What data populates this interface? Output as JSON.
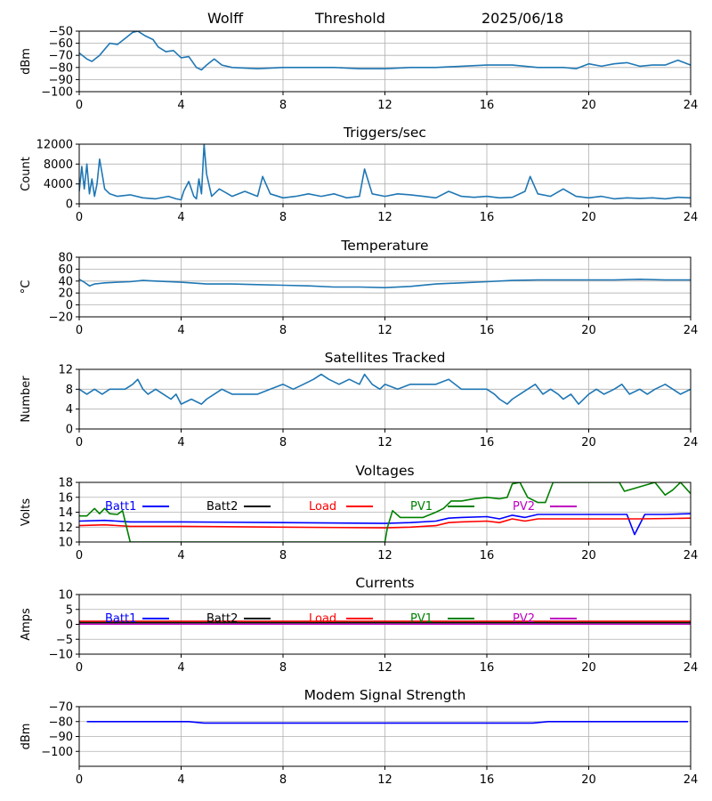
{
  "header": {
    "site": "Wolff",
    "mode": "Threshold",
    "date": "2025/06/18"
  },
  "colors": {
    "series": "#1f77b4",
    "grid": "#b0b0b0",
    "batt1": "#0000ff",
    "batt2": "#000000",
    "load": "#ff0000",
    "pv1": "#008000",
    "pv2": "#bf00bf",
    "modem": "#0000ff"
  },
  "chart_data": [
    {
      "type": "line",
      "title": "",
      "ylabel": "dBm",
      "xlim": [
        0,
        24
      ],
      "ylim": [
        -100,
        -50
      ],
      "xticks": [
        0,
        4,
        8,
        12,
        16,
        20,
        24
      ],
      "yticks": [
        -100,
        -90,
        -80,
        -70,
        -60,
        -50
      ],
      "grid": true,
      "series": [
        {
          "color": "#1f77b4",
          "x": [
            0,
            0.3,
            0.5,
            0.8,
            1.2,
            1.5,
            1.8,
            2.1,
            2.3,
            2.6,
            2.9,
            3.1,
            3.4,
            3.7,
            4,
            4.3,
            4.6,
            4.8,
            5,
            5.3,
            5.6,
            6,
            7,
            8,
            9,
            10,
            11,
            12,
            13,
            14,
            15,
            16,
            17,
            18,
            19,
            19.5,
            20,
            20.5,
            21,
            21.5,
            22,
            22.5,
            23,
            23.5,
            24
          ],
          "y": [
            -68,
            -73,
            -75,
            -70,
            -60,
            -61,
            -56,
            -51,
            -50,
            -54,
            -57,
            -63,
            -67,
            -66,
            -72,
            -71,
            -80,
            -82,
            -78,
            -73,
            -78,
            -80,
            -81,
            -80,
            -80,
            -80,
            -81,
            -81,
            -80,
            -80,
            -79,
            -78,
            -78,
            -80,
            -80,
            -81,
            -77,
            -79,
            -77,
            -76,
            -79,
            -78,
            -78,
            -74,
            -78
          ]
        }
      ]
    },
    {
      "type": "line",
      "title": "Triggers/sec",
      "ylabel": "Count",
      "xlim": [
        0,
        24
      ],
      "ylim": [
        0,
        12000
      ],
      "xticks": [
        0,
        4,
        8,
        12,
        16,
        20,
        24
      ],
      "yticks": [
        0,
        4000,
        8000,
        12000
      ],
      "grid": true,
      "series": [
        {
          "color": "#1f77b4",
          "x": [
            0,
            0.1,
            0.2,
            0.3,
            0.4,
            0.5,
            0.6,
            0.7,
            0.8,
            0.9,
            1,
            1.2,
            1.5,
            2,
            2.5,
            3,
            3.5,
            3.8,
            4,
            4.1,
            4.3,
            4.5,
            4.6,
            4.7,
            4.8,
            4.9,
            5,
            5.2,
            5.5,
            6,
            6.5,
            7,
            7.2,
            7.5,
            8,
            8.5,
            9,
            9.5,
            10,
            10.5,
            11,
            11.2,
            11.5,
            12,
            12.5,
            13,
            13.5,
            14,
            14.5,
            15,
            15.5,
            16,
            16.5,
            17,
            17.5,
            17.7,
            18,
            18.5,
            19,
            19.5,
            20,
            20.5,
            21,
            21.5,
            22,
            22.5,
            23,
            23.5,
            24
          ],
          "y": [
            2500,
            7500,
            3000,
            8000,
            2000,
            5000,
            1500,
            4000,
            9000,
            6000,
            3000,
            2000,
            1500,
            1800,
            1200,
            1000,
            1500,
            1000,
            800,
            2500,
            4500,
            1500,
            1000,
            5000,
            2000,
            12000,
            6000,
            1500,
            3000,
            1500,
            2500,
            1500,
            5500,
            2000,
            1200,
            1500,
            2000,
            1500,
            2000,
            1200,
            1500,
            7000,
            2000,
            1500,
            2000,
            1800,
            1500,
            1200,
            2500,
            1500,
            1300,
            1500,
            1200,
            1300,
            2500,
            5500,
            2000,
            1500,
            3000,
            1500,
            1200,
            1500,
            1000,
            1200,
            1100,
            1200,
            1000,
            1300,
            1200
          ]
        }
      ]
    },
    {
      "type": "line",
      "title": "Temperature",
      "ylabel": "°C",
      "xlim": [
        0,
        24
      ],
      "ylim": [
        -20,
        80
      ],
      "xticks": [
        0,
        4,
        8,
        12,
        16,
        20,
        24
      ],
      "yticks": [
        -20,
        0,
        20,
        40,
        60,
        80
      ],
      "grid": true,
      "series": [
        {
          "color": "#1f77b4",
          "x": [
            0,
            0.2,
            0.4,
            0.6,
            0.8,
            1,
            1.5,
            2,
            2.5,
            3,
            4,
            5,
            6,
            7,
            8,
            9,
            10,
            11,
            12,
            13,
            14,
            15,
            16,
            17,
            18,
            19,
            20,
            21,
            22,
            23,
            24
          ],
          "y": [
            43,
            38,
            32,
            35,
            36,
            37,
            38,
            39,
            41,
            40,
            38,
            35,
            35,
            34,
            33,
            32,
            30,
            30,
            29,
            31,
            35,
            37,
            39,
            41,
            42,
            42,
            42,
            42,
            43,
            42,
            42
          ]
        }
      ]
    },
    {
      "type": "line",
      "title": "Satellites Tracked",
      "ylabel": "Number",
      "xlim": [
        0,
        24
      ],
      "ylim": [
        0,
        12
      ],
      "xticks": [
        0,
        4,
        8,
        12,
        16,
        20,
        24
      ],
      "yticks": [
        0,
        4,
        8,
        12
      ],
      "grid": true,
      "series": [
        {
          "color": "#1f77b4",
          "x": [
            0,
            0.3,
            0.6,
            0.9,
            1.2,
            1.5,
            1.8,
            2.1,
            2.3,
            2.5,
            2.7,
            3,
            3.3,
            3.6,
            3.8,
            4,
            4.4,
            4.8,
            5,
            5.3,
            5.6,
            6,
            6.5,
            7,
            7.5,
            8,
            8.4,
            8.8,
            9.2,
            9.5,
            9.8,
            10.2,
            10.6,
            11,
            11.2,
            11.5,
            11.8,
            12,
            12.5,
            13,
            13.5,
            14,
            14.5,
            15,
            15.5,
            16,
            16.3,
            16.5,
            16.8,
            17,
            17.3,
            17.6,
            17.9,
            18.2,
            18.5,
            18.8,
            19,
            19.3,
            19.6,
            20,
            20.3,
            20.6,
            21,
            21.3,
            21.6,
            22,
            22.3,
            22.6,
            23,
            23.3,
            23.6,
            24
          ],
          "y": [
            8,
            7,
            8,
            7,
            8,
            8,
            8,
            9,
            10,
            8,
            7,
            8,
            7,
            6,
            7,
            5,
            6,
            5,
            6,
            7,
            8,
            7,
            7,
            7,
            8,
            9,
            8,
            9,
            10,
            11,
            10,
            9,
            10,
            9,
            11,
            9,
            8,
            9,
            8,
            9,
            9,
            9,
            10,
            8,
            8,
            8,
            7,
            6,
            5,
            6,
            7,
            8,
            9,
            7,
            8,
            7,
            6,
            7,
            5,
            7,
            8,
            7,
            8,
            9,
            7,
            8,
            7,
            8,
            9,
            8,
            7,
            8
          ]
        }
      ]
    },
    {
      "type": "line",
      "title": "Voltages",
      "ylabel": "Volts",
      "xlim": [
        0,
        24
      ],
      "ylim": [
        10,
        18
      ],
      "xticks": [
        0,
        4,
        8,
        12,
        16,
        20,
        24
      ],
      "yticks": [
        10,
        12,
        14,
        16,
        18
      ],
      "grid": true,
      "legend": [
        "Batt1",
        "Batt2",
        "Load",
        "PV1",
        "PV2"
      ],
      "series": [
        {
          "name": "Batt1",
          "color": "#0000ff",
          "x": [
            0,
            1,
            2,
            4,
            8,
            12,
            13,
            14,
            14.5,
            15,
            16,
            16.5,
            17,
            17.5,
            18,
            19,
            20,
            21,
            21.5,
            21.8,
            22.2,
            23,
            24
          ],
          "y": [
            12.8,
            12.9,
            12.7,
            12.7,
            12.6,
            12.5,
            12.6,
            12.8,
            13.2,
            13.3,
            13.4,
            13.1,
            13.6,
            13.3,
            13.7,
            13.7,
            13.7,
            13.7,
            13.7,
            11.0,
            13.7,
            13.7,
            13.8
          ]
        },
        {
          "name": "Load",
          "color": "#ff0000",
          "x": [
            0,
            1,
            2,
            4,
            8,
            12,
            13,
            14,
            14.5,
            15,
            16,
            16.5,
            17,
            17.5,
            18,
            19,
            20,
            22,
            24
          ],
          "y": [
            12.2,
            12.3,
            12.1,
            12.1,
            12.0,
            11.9,
            12.0,
            12.2,
            12.6,
            12.7,
            12.8,
            12.6,
            13.1,
            12.8,
            13.1,
            13.1,
            13.1,
            13.1,
            13.2
          ]
        },
        {
          "name": "PV1",
          "color": "#008000",
          "x": [
            0,
            0.3,
            0.6,
            0.8,
            1,
            1.2,
            1.5,
            1.7,
            2.0,
            12.0,
            12.1,
            12.3,
            12.6,
            13,
            13.5,
            14,
            14.3,
            14.6,
            15,
            15.5,
            16,
            16.5,
            16.8,
            17,
            17.3,
            17.6,
            18,
            18.3,
            18.6,
            21.2,
            21.4,
            22.6,
            23,
            23.3,
            23.6,
            24
          ],
          "y": [
            13.5,
            13.5,
            14.5,
            13.8,
            14.5,
            13.8,
            13.7,
            14.2,
            10,
            10,
            12,
            14.2,
            13.3,
            13.3,
            13.3,
            14,
            14.5,
            15.5,
            15.5,
            15.8,
            16,
            15.8,
            16,
            17.8,
            18,
            16,
            15.3,
            15.3,
            18,
            18,
            16.8,
            18,
            16.3,
            17,
            18,
            16.5
          ]
        }
      ]
    },
    {
      "type": "line",
      "title": "Currents",
      "ylabel": "Amps",
      "xlim": [
        0,
        24
      ],
      "ylim": [
        -10,
        10
      ],
      "xticks": [
        0,
        4,
        8,
        12,
        16,
        20,
        24
      ],
      "yticks": [
        -10,
        -5,
        0,
        5,
        10
      ],
      "grid": true,
      "legend": [
        "Batt1",
        "Batt2",
        "Load",
        "PV1",
        "PV2"
      ],
      "series": [
        {
          "name": "Load",
          "color": "#ff0000",
          "x": [
            0,
            24
          ],
          "y": [
            1.0,
            1.0
          ]
        },
        {
          "name": "Batt2",
          "color": "#000000",
          "x": [
            0,
            24
          ],
          "y": [
            0.6,
            0.6
          ]
        },
        {
          "name": "PV1",
          "color": "#008000",
          "x": [
            0,
            24
          ],
          "y": [
            0.3,
            0.3
          ]
        },
        {
          "name": "PV2",
          "color": "#bf00bf",
          "x": [
            0,
            24
          ],
          "y": [
            0.1,
            0.1
          ]
        }
      ]
    },
    {
      "type": "line",
      "title": "Modem Signal Strength",
      "ylabel": "dBm",
      "xlim": [
        0,
        24
      ],
      "ylim": [
        -110,
        -70
      ],
      "xticks": [
        0,
        4,
        8,
        12,
        16,
        20,
        24
      ],
      "yticks": [
        -100,
        -90,
        -80,
        -70
      ],
      "grid": true,
      "series": [
        {
          "name": "Modem",
          "color": "#0000ff",
          "x": [
            0.3,
            4.3,
            4.9,
            17.8,
            18.4,
            23.9
          ],
          "y": [
            -80,
            -80,
            -81,
            -81,
            -80,
            -80
          ]
        }
      ]
    }
  ]
}
